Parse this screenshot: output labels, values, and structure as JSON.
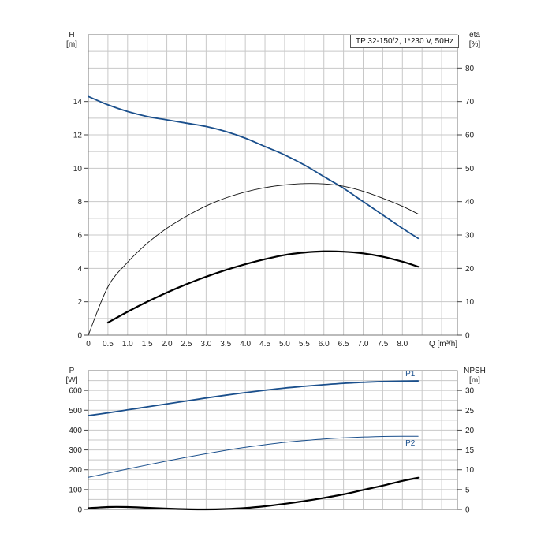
{
  "chart_data": [
    {
      "type": "line",
      "title": "TP 32-150/2, 1*230 V, 50Hz",
      "xlabel": "Q [m³/h]",
      "x_ticks": [
        "0",
        "0.5",
        "1.0",
        "1.5",
        "2.0",
        "2.5",
        "3.0",
        "3.5",
        "4.0",
        "4.5",
        "5.0",
        "5.5",
        "6.0",
        "6.5",
        "7.0",
        "7.5",
        "8.0"
      ],
      "xlim": [
        0,
        9.4
      ],
      "y_left": {
        "label": "H",
        "unit": "[m]",
        "lim": [
          0,
          18
        ],
        "ticks": [
          "0",
          "2",
          "4",
          "6",
          "8",
          "10",
          "12",
          "14"
        ]
      },
      "y_right": {
        "label": "eta",
        "unit": "[%]",
        "lim": [
          0,
          90
        ],
        "ticks": [
          "0",
          "10",
          "20",
          "30",
          "40",
          "50",
          "60",
          "70",
          "80"
        ]
      },
      "grid": true,
      "series": [
        {
          "name": "",
          "axis": "left",
          "color": "#1a4f8c",
          "x": [
            0,
            0.5,
            1.0,
            1.5,
            2.0,
            2.5,
            3.0,
            3.5,
            4.0,
            4.5,
            5.0,
            5.5,
            6.0,
            6.5,
            7.0,
            7.5,
            8.0,
            8.4
          ],
          "y": [
            14.3,
            13.8,
            13.4,
            13.1,
            12.9,
            12.7,
            12.5,
            12.2,
            11.8,
            11.3,
            10.8,
            10.2,
            9.5,
            8.8,
            8.0,
            7.2,
            6.4,
            5.8
          ]
        },
        {
          "name": "",
          "axis": "right",
          "color": "#111111",
          "x": [
            0,
            0.5,
            1.0,
            1.5,
            2.0,
            2.5,
            3.0,
            3.5,
            4.0,
            4.5,
            5.0,
            5.5,
            6.0,
            6.5,
            7.0,
            7.5,
            8.0,
            8.4
          ],
          "y": [
            0,
            14.5,
            21.8,
            27.5,
            32.0,
            35.6,
            38.7,
            41.1,
            42.9,
            44.2,
            45.0,
            45.4,
            45.3,
            44.6,
            43.1,
            41.0,
            38.6,
            36.3
          ]
        },
        {
          "name": "",
          "axis": "left",
          "color": "#000000",
          "x": [
            0.5,
            1.0,
            1.5,
            2.0,
            2.5,
            3.0,
            3.5,
            4.0,
            4.5,
            5.0,
            5.5,
            6.0,
            6.5,
            7.0,
            7.5,
            8.0,
            8.4
          ],
          "y": [
            0.75,
            1.4,
            2.0,
            2.55,
            3.05,
            3.5,
            3.9,
            4.25,
            4.55,
            4.8,
            4.95,
            5.02,
            5.0,
            4.9,
            4.7,
            4.4,
            4.1
          ]
        }
      ]
    },
    {
      "type": "line",
      "xlabel": "",
      "xlim": [
        0,
        9.4
      ],
      "y_left": {
        "label": "P",
        "unit": "[W]",
        "lim": [
          0,
          700
        ],
        "ticks": [
          "0",
          "100",
          "200",
          "300",
          "400",
          "500",
          "600"
        ]
      },
      "y_right": {
        "label": "NPSH",
        "unit": "[m]",
        "lim": [
          0,
          35
        ],
        "ticks": [
          "0",
          "5",
          "10",
          "15",
          "20",
          "25",
          "30"
        ]
      },
      "grid": true,
      "series": [
        {
          "name": "P1",
          "axis": "left",
          "color": "#1a4f8c",
          "x": [
            0,
            0.5,
            1.0,
            1.5,
            2.0,
            2.5,
            3.0,
            3.5,
            4.0,
            4.5,
            5.0,
            5.5,
            6.0,
            6.5,
            7.0,
            7.5,
            8.0,
            8.4
          ],
          "y": [
            473,
            487,
            502,
            517,
            532,
            547,
            562,
            576,
            589,
            601,
            612,
            621,
            629,
            636,
            641,
            645,
            647,
            648
          ]
        },
        {
          "name": "P2",
          "axis": "left",
          "color": "#1a4f8c",
          "x": [
            0,
            0.5,
            1.0,
            1.5,
            2.0,
            2.5,
            3.0,
            3.5,
            4.0,
            4.5,
            5.0,
            5.5,
            6.0,
            6.5,
            7.0,
            7.5,
            8.0,
            8.4
          ],
          "y": [
            162,
            183,
            204,
            224,
            244,
            263,
            281,
            298,
            313,
            326,
            338,
            347,
            355,
            361,
            365,
            368,
            369,
            369
          ]
        },
        {
          "name": "",
          "axis": "right",
          "color": "#000000",
          "x": [
            0,
            0.5,
            1.0,
            1.5,
            2.0,
            2.5,
            3.0,
            3.5,
            4.0,
            4.5,
            5.0,
            5.5,
            6.0,
            6.5,
            7.0,
            7.5,
            8.0,
            8.4
          ],
          "y": [
            0.3,
            0.6,
            0.6,
            0.4,
            0.2,
            0.05,
            0.0,
            0.1,
            0.35,
            0.8,
            1.4,
            2.1,
            2.9,
            3.8,
            4.9,
            6.0,
            7.2,
            8.0
          ]
        }
      ]
    }
  ]
}
